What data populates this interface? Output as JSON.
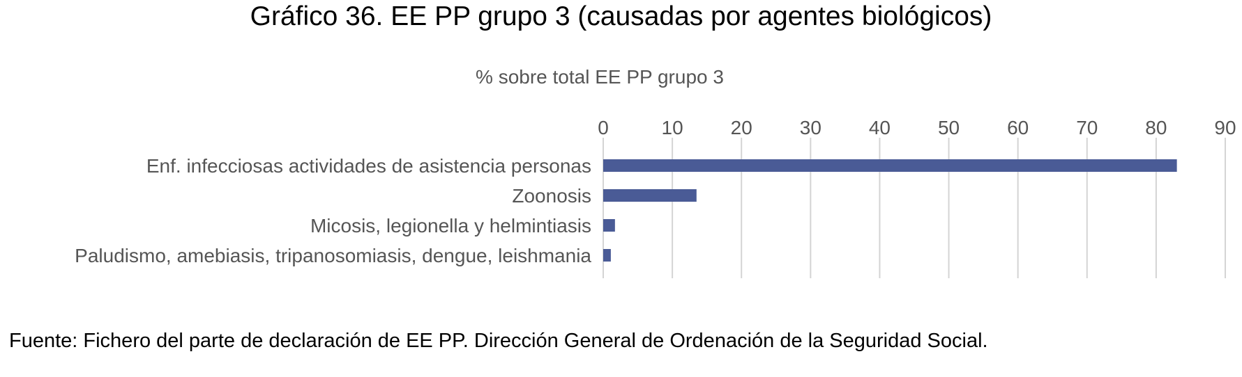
{
  "title": "Gráfico 36. EE PP grupo 3 (causadas por agentes biológicos)",
  "source": "Fuente: Fichero del parte de declaración de EE PP. Dirección General de Ordenación de la Seguridad Social.",
  "chart_data": {
    "type": "bar",
    "orientation": "horizontal",
    "subtitle": "% sobre total EE PP grupo 3",
    "categories": [
      "Enf. infecciosas actividades de asistencia personas",
      "Zoonosis",
      "Micosis, legionella y helmintiasis",
      "Paludismo, amebiasis, tripanosomiasis, dengue, leishmania"
    ],
    "values": [
      83,
      13.5,
      1.7,
      1.1
    ],
    "xlim": [
      0,
      90
    ],
    "xticks": [
      0,
      10,
      20,
      30,
      40,
      50,
      60,
      70,
      80,
      90
    ],
    "axis_position": "top",
    "grid": true,
    "bar_color": "#4a5b96",
    "grid_color": "#d4d4d4",
    "text_color": "#555555"
  }
}
